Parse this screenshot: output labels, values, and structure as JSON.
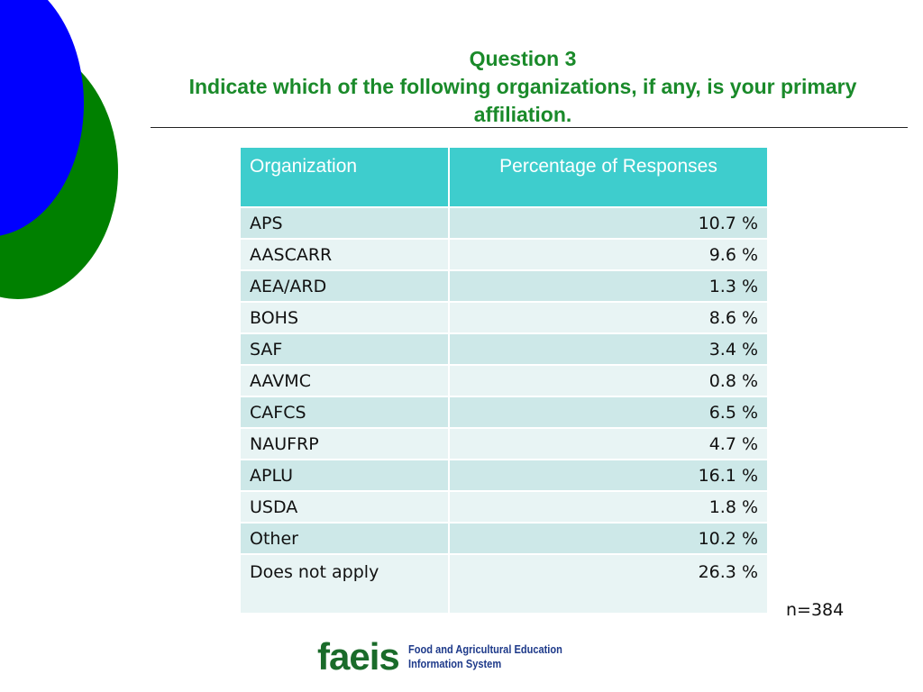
{
  "title": {
    "line1": "Question 3",
    "line2": "Indicate which of the following organizations, if any, is your primary affiliation."
  },
  "table": {
    "headers": [
      "Organization",
      "Percentage of  Responses"
    ],
    "rows": [
      {
        "org": "APS",
        "pct": "10.7 %"
      },
      {
        "org": "AASCARR",
        "pct": "9.6 %"
      },
      {
        "org": "AEA/ARD",
        "pct": "1.3 %"
      },
      {
        "org": "BOHS",
        "pct": "8.6 %"
      },
      {
        "org": "SAF",
        "pct": "3.4 %"
      },
      {
        "org": "AAVMC",
        "pct": "0.8 %"
      },
      {
        "org": "CAFCS",
        "pct": "6.5 %"
      },
      {
        "org": "NAUFRP",
        "pct": "4.7 %"
      },
      {
        "org": "APLU",
        "pct": "16.1 %"
      },
      {
        "org": "USDA",
        "pct": "1.8 %"
      },
      {
        "org": "Other",
        "pct": "10.2 %"
      },
      {
        "org": "Does not apply",
        "pct": "26.3 %"
      }
    ]
  },
  "sample_size": "n=384",
  "logo": {
    "mark": "faeis",
    "line1": "Food and Agricultural Education",
    "line2": "Information System"
  },
  "colors": {
    "title": "#1a8a2a",
    "header": "#3ecdcd",
    "row_odd": "#cde8e8",
    "row_even": "#e8f4f4",
    "deco_blue": "#0000ff",
    "deco_green": "#008000"
  }
}
